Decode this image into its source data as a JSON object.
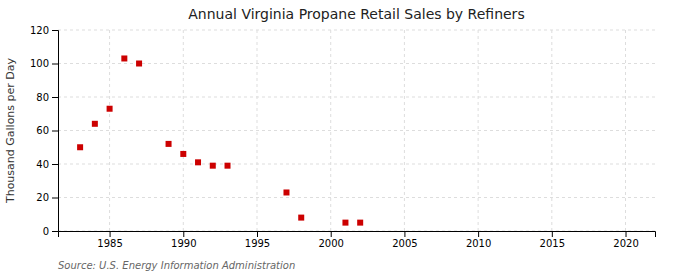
{
  "chart_data": {
    "type": "scatter",
    "title": "Annual Virginia Propane Retail Sales by Refiners",
    "ylabel": "Thousand Gallons per Day",
    "source": "Source: U.S. Energy Information Administration",
    "x": [
      1983,
      1984,
      1985,
      1986,
      1987,
      1989,
      1990,
      1991,
      1992,
      1993,
      1997,
      1998,
      2001,
      2002
    ],
    "values": [
      50,
      64,
      73,
      103,
      100,
      52,
      46,
      41,
      39,
      39,
      23,
      8,
      5,
      5
    ],
    "color": "#cc0000",
    "marker": "square",
    "xlim": [
      1981.5,
      2022
    ],
    "ylim": [
      0,
      120
    ],
    "xticks": [
      1985,
      1990,
      1995,
      2000,
      2005,
      2010,
      2015,
      2020
    ],
    "yticks": [
      0,
      20,
      40,
      60,
      80,
      100,
      120
    ],
    "grid": true
  }
}
